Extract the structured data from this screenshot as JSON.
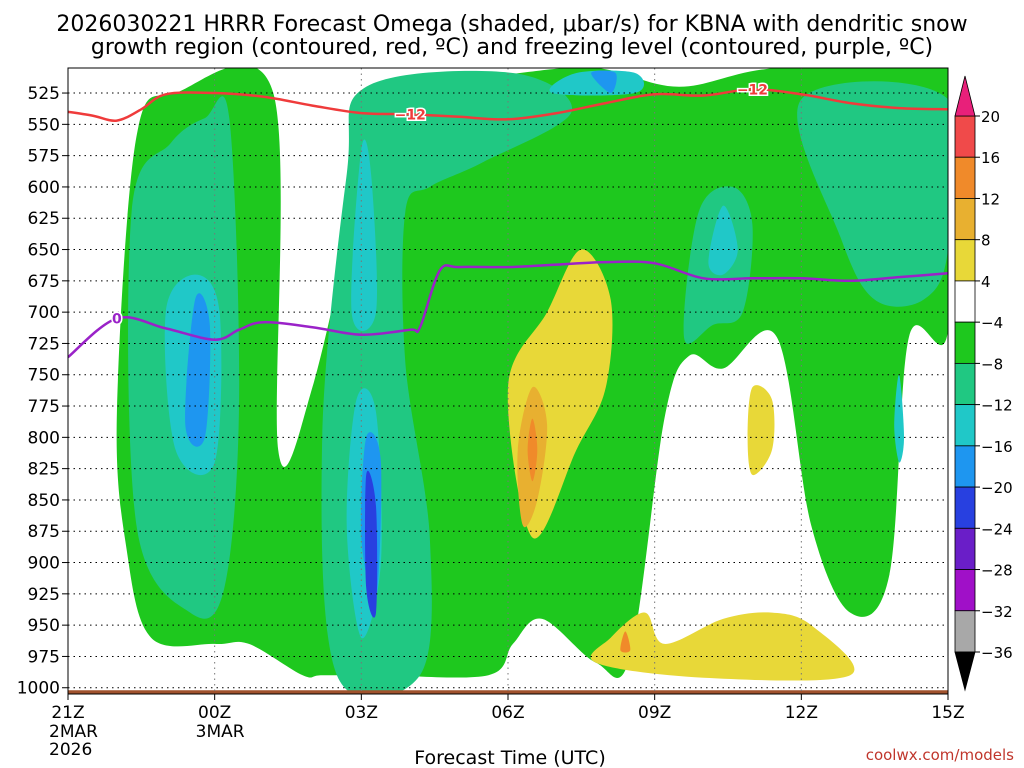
{
  "chart_data": {
    "type": "heatmap",
    "title_line1": "2026030221 HRRR Forecast Omega (shaded, μbar/s) for KBNA with dendritic snow",
    "title_line2": "growth region (contoured, red, ºC) and freezing level (contoured, purple, ºC)",
    "xlabel": "Forecast Time (UTC)",
    "credit": "coolwx.com/models",
    "x_ticks": [
      {
        "hour": 0,
        "line1": "21Z",
        "line2": "2MAR",
        "line3": "2026"
      },
      {
        "hour": 3,
        "line1": "00Z",
        "line2": "3MAR",
        "line3": ""
      },
      {
        "hour": 6,
        "line1": "03Z",
        "line2": "",
        "line3": ""
      },
      {
        "hour": 9,
        "line1": "06Z",
        "line2": "",
        "line3": ""
      },
      {
        "hour": 12,
        "line1": "09Z",
        "line2": "",
        "line3": ""
      },
      {
        "hour": 15,
        "line1": "12Z",
        "line2": "",
        "line3": ""
      },
      {
        "hour": 18,
        "line1": "15Z",
        "line2": "",
        "line3": ""
      }
    ],
    "xlim": [
      0,
      18
    ],
    "y_ticks": [
      "525",
      "550",
      "575",
      "600",
      "625",
      "650",
      "675",
      "700",
      "725",
      "750",
      "775",
      "800",
      "825",
      "850",
      "875",
      "900",
      "925",
      "950",
      "975",
      "1000"
    ],
    "ylim_hpa": [
      505,
      1005
    ],
    "colorbar": {
      "labels": [
        "20",
        "16",
        "12",
        "8",
        "4",
        "−4",
        "−8",
        "−12",
        "−16",
        "−20",
        "−24",
        "−28",
        "−32",
        "−36"
      ],
      "bands": [
        {
          "range": [
            16,
            20
          ],
          "color": "#f04a4a"
        },
        {
          "range": [
            12,
            16
          ],
          "color": "#f08a2a"
        },
        {
          "range": [
            8,
            12
          ],
          "color": "#e8b030"
        },
        {
          "range": [
            4,
            8
          ],
          "color": "#e8d838"
        },
        {
          "range": [
            -4,
            4
          ],
          "color": "#ffffff"
        },
        {
          "range": [
            -8,
            -4
          ],
          "color": "#1ec81e"
        },
        {
          "range": [
            -12,
            -8
          ],
          "color": "#20c882"
        },
        {
          "range": [
            -16,
            -12
          ],
          "color": "#20c8c8"
        },
        {
          "range": [
            -20,
            -16
          ],
          "color": "#1e96f0"
        },
        {
          "range": [
            -24,
            -20
          ],
          "color": "#2840e0"
        },
        {
          "range": [
            -28,
            -24
          ],
          "color": "#6a1ec8"
        },
        {
          "range": [
            -32,
            -28
          ],
          "color": "#a010c8"
        },
        {
          "range": [
            -36,
            -32
          ],
          "color": "#a8a8a8"
        }
      ],
      "top_arrow_color": "#e8207a",
      "bottom_arrow_color": "#000000"
    },
    "contours": {
      "dgz_minus12": {
        "label": "−12",
        "color": "#ef3b3b",
        "points": [
          [
            0,
            540
          ],
          [
            0.5,
            543
          ],
          [
            1,
            547
          ],
          [
            1.5,
            538
          ],
          [
            2,
            526
          ],
          [
            3,
            525
          ],
          [
            4,
            528
          ],
          [
            5,
            535
          ],
          [
            6,
            541
          ],
          [
            7,
            542
          ],
          [
            8,
            544
          ],
          [
            9,
            546
          ],
          [
            10,
            541
          ],
          [
            11,
            533
          ],
          [
            12,
            526
          ],
          [
            13,
            527
          ],
          [
            14,
            522
          ],
          [
            15,
            526
          ],
          [
            16,
            533
          ],
          [
            17,
            537
          ],
          [
            18,
            538
          ]
        ],
        "label_positions": [
          [
            7,
            542
          ],
          [
            14,
            522
          ]
        ]
      },
      "freezing_level_0": {
        "label": "0",
        "color": "#9a22c8",
        "points": [
          [
            0,
            736
          ],
          [
            1,
            705
          ],
          [
            2,
            713
          ],
          [
            3,
            722
          ],
          [
            3.5,
            714
          ],
          [
            4,
            708
          ],
          [
            5,
            712
          ],
          [
            6,
            718
          ],
          [
            7,
            714
          ],
          [
            7.2,
            712
          ],
          [
            7.6,
            667
          ],
          [
            8,
            664
          ],
          [
            9,
            664
          ],
          [
            10,
            662
          ],
          [
            11,
            660
          ],
          [
            12,
            661
          ],
          [
            13,
            673
          ],
          [
            14,
            673
          ],
          [
            15,
            673
          ],
          [
            16,
            675
          ],
          [
            17,
            672
          ],
          [
            18,
            669
          ]
        ],
        "label_positions": [
          [
            1,
            705
          ]
        ]
      }
    },
    "omega_regions": [
      {
        "value_band": "-8",
        "color": "#1ec81e",
        "points": [
          [
            1,
            780
          ],
          [
            1.4,
            560
          ],
          [
            2.2,
            525
          ],
          [
            4.2,
            525
          ],
          [
            4.3,
            810
          ],
          [
            5,
            760
          ],
          [
            5.9,
            600
          ],
          [
            6,
            525
          ],
          [
            9,
            510
          ],
          [
            10.8,
            505
          ],
          [
            12.5,
            520
          ],
          [
            14.5,
            505
          ],
          [
            18,
            505
          ],
          [
            18,
            715
          ],
          [
            17.2,
            720
          ],
          [
            16.8,
            910
          ],
          [
            16,
            940
          ],
          [
            15.2,
            870
          ],
          [
            14.5,
            720
          ],
          [
            13.4,
            745
          ],
          [
            12.7,
            735
          ],
          [
            12.2,
            785
          ],
          [
            11.5,
            975
          ],
          [
            10.8,
            980
          ],
          [
            9.7,
            945
          ],
          [
            9.1,
            965
          ],
          [
            8.6,
            990
          ],
          [
            6.4,
            990
          ],
          [
            5.2,
            990
          ],
          [
            4.8,
            990
          ],
          [
            3.7,
            965
          ],
          [
            3,
            965
          ],
          [
            1.7,
            960
          ],
          [
            1.2,
            890
          ]
        ]
      },
      {
        "value_band": "-12",
        "color": "#20c882",
        "points": [
          [
            1.4,
            870
          ],
          [
            1.3,
            620
          ],
          [
            2.1,
            565
          ],
          [
            2.8,
            545
          ],
          [
            3.3,
            545
          ],
          [
            3.5,
            770
          ],
          [
            3.2,
            920
          ],
          [
            2.5,
            940
          ]
        ]
      },
      {
        "value_band": "-12",
        "color": "#20c882",
        "points": [
          [
            5.5,
            990
          ],
          [
            5.2,
            800
          ],
          [
            5.7,
            590
          ],
          [
            6.1,
            520
          ],
          [
            9.1,
            509
          ],
          [
            10.3,
            540
          ],
          [
            8.5,
            580
          ],
          [
            7.4,
            600
          ],
          [
            6.9,
            620
          ],
          [
            6.9,
            740
          ],
          [
            7.4,
            880
          ],
          [
            7.2,
            990
          ]
        ]
      },
      {
        "value_band": "-12",
        "color": "#20c882",
        "points": [
          [
            15,
            530
          ],
          [
            18,
            530
          ],
          [
            18,
            650
          ],
          [
            17.5,
            690
          ],
          [
            16.5,
            690
          ],
          [
            15.8,
            640
          ]
        ]
      },
      {
        "value_band": "-12",
        "color": "#20c882",
        "points": [
          [
            12.6,
            720
          ],
          [
            12.9,
            620
          ],
          [
            13.6,
            600
          ],
          [
            14,
            630
          ],
          [
            13.8,
            700
          ],
          [
            13.2,
            710
          ]
        ]
      },
      {
        "value_band": "-16",
        "color": "#20c8c8",
        "points": [
          [
            2.2,
            810
          ],
          [
            2,
            700
          ],
          [
            2.6,
            670
          ],
          [
            3.1,
            700
          ],
          [
            3,
            820
          ]
        ]
      },
      {
        "value_band": "-16",
        "color": "#20c8c8",
        "points": [
          [
            5.7,
            870
          ],
          [
            5.9,
            770
          ],
          [
            6.3,
            780
          ],
          [
            6.4,
            900
          ],
          [
            6,
            960
          ]
        ]
      },
      {
        "value_band": "-16",
        "color": "#20c8c8",
        "points": [
          [
            5.8,
            700
          ],
          [
            6,
            570
          ],
          [
            6.2,
            590
          ],
          [
            6.3,
            700
          ]
        ]
      },
      {
        "value_band": "-16",
        "color": "#20c8c8",
        "points": [
          [
            9.9,
            525
          ],
          [
            10.4,
            509
          ],
          [
            11.6,
            509
          ],
          [
            11.6,
            525
          ]
        ]
      },
      {
        "value_band": "-16",
        "color": "#20c8c8",
        "points": [
          [
            13.1,
            660
          ],
          [
            13.4,
            615
          ],
          [
            13.7,
            650
          ],
          [
            13.4,
            670
          ]
        ]
      },
      {
        "value_band": "-16",
        "color": "#20c8c8",
        "points": [
          [
            16.9,
            790
          ],
          [
            17,
            750
          ],
          [
            17.1,
            800
          ],
          [
            17,
            820
          ]
        ]
      },
      {
        "value_band": "-20",
        "color": "#1e96f0",
        "points": [
          [
            2.4,
            790
          ],
          [
            2.6,
            690
          ],
          [
            2.9,
            710
          ],
          [
            2.8,
            800
          ]
        ]
      },
      {
        "value_band": "-20",
        "color": "#1e96f0",
        "points": [
          [
            6,
            880
          ],
          [
            6.1,
            800
          ],
          [
            6.4,
            820
          ],
          [
            6.3,
            930
          ]
        ]
      },
      {
        "value_band": "-20",
        "color": "#1e96f0",
        "points": [
          [
            10.7,
            509
          ],
          [
            11.2,
            509
          ],
          [
            11.1,
            525
          ]
        ]
      },
      {
        "value_band": "-24",
        "color": "#2840e0",
        "points": [
          [
            6.1,
            920
          ],
          [
            6.1,
            830
          ],
          [
            6.3,
            855
          ],
          [
            6.3,
            940
          ]
        ]
      },
      {
        "value_band": "4",
        "color": "#e8d838",
        "points": [
          [
            9,
            760
          ],
          [
            9.8,
            700
          ],
          [
            10.5,
            650
          ],
          [
            11.1,
            690
          ],
          [
            11,
            760
          ],
          [
            10.4,
            810
          ],
          [
            9.5,
            880
          ]
        ]
      },
      {
        "value_band": "4",
        "color": "#e8d838",
        "points": [
          [
            13.9,
            800
          ],
          [
            14,
            760
          ],
          [
            14.4,
            770
          ],
          [
            14.4,
            810
          ],
          [
            14,
            830
          ]
        ]
      },
      {
        "value_band": "4",
        "color": "#e8d838",
        "points": [
          [
            10.8,
            980
          ],
          [
            11.1,
            960
          ],
          [
            11.8,
            940
          ],
          [
            12.2,
            965
          ],
          [
            13.4,
            945
          ],
          [
            14.4,
            940
          ],
          [
            15.2,
            950
          ],
          [
            16,
            990
          ],
          [
            13,
            992
          ]
        ]
      },
      {
        "value_band": "8",
        "color": "#e8b030",
        "points": [
          [
            9.2,
            810
          ],
          [
            9.5,
            760
          ],
          [
            9.8,
            790
          ],
          [
            9.6,
            850
          ],
          [
            9.3,
            870
          ]
        ]
      },
      {
        "value_band": "12",
        "color": "#f08a2a",
        "points": [
          [
            9.4,
            810
          ],
          [
            9.5,
            785
          ],
          [
            9.6,
            810
          ],
          [
            9.5,
            835
          ]
        ]
      },
      {
        "value_band": "12",
        "color": "#f08a2a",
        "points": [
          [
            11.3,
            970
          ],
          [
            11.4,
            955
          ],
          [
            11.5,
            970
          ]
        ]
      }
    ]
  }
}
